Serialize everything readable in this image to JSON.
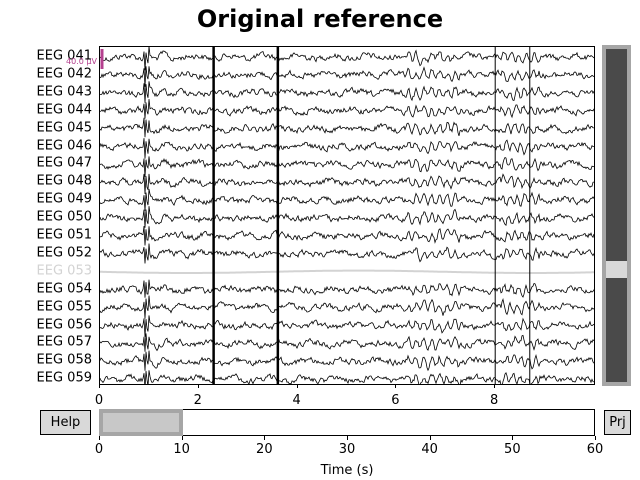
{
  "title": "Original reference",
  "channels": [
    {
      "name": "EEG 041",
      "bad": false
    },
    {
      "name": "EEG 042",
      "bad": false
    },
    {
      "name": "EEG 043",
      "bad": false
    },
    {
      "name": "EEG 044",
      "bad": false
    },
    {
      "name": "EEG 045",
      "bad": false
    },
    {
      "name": "EEG 046",
      "bad": false
    },
    {
      "name": "EEG 047",
      "bad": false
    },
    {
      "name": "EEG 048",
      "bad": false
    },
    {
      "name": "EEG 049",
      "bad": false
    },
    {
      "name": "EEG 050",
      "bad": false
    },
    {
      "name": "EEG 051",
      "bad": false
    },
    {
      "name": "EEG 052",
      "bad": false
    },
    {
      "name": "EEG 053",
      "bad": true
    },
    {
      "name": "EEG 054",
      "bad": false
    },
    {
      "name": "EEG 055",
      "bad": false
    },
    {
      "name": "EEG 056",
      "bad": false
    },
    {
      "name": "EEG 057",
      "bad": false
    },
    {
      "name": "EEG 058",
      "bad": false
    },
    {
      "name": "EEG 059",
      "bad": false
    }
  ],
  "scale_bar_label": "40.0 µV",
  "time_axis": {
    "window_start": 0,
    "window_end": 10,
    "ticks": [
      "0",
      "2",
      "4",
      "6",
      "8"
    ]
  },
  "events_at_seconds": [
    2.3,
    3.6,
    8.0,
    8.7
  ],
  "buttons": {
    "help": "Help",
    "projectors": "Prj"
  },
  "overview": {
    "ticks": [
      "0",
      "10",
      "20",
      "30",
      "40",
      "50",
      "60"
    ],
    "total_seconds": 60,
    "view_start": 0,
    "view_end": 10,
    "xlabel": "Time (s)"
  },
  "colors": {
    "trace": "#000000",
    "bad_trace": "#d3d3d3",
    "scale_bar": "#b5408f",
    "event_line": "#000000"
  }
}
